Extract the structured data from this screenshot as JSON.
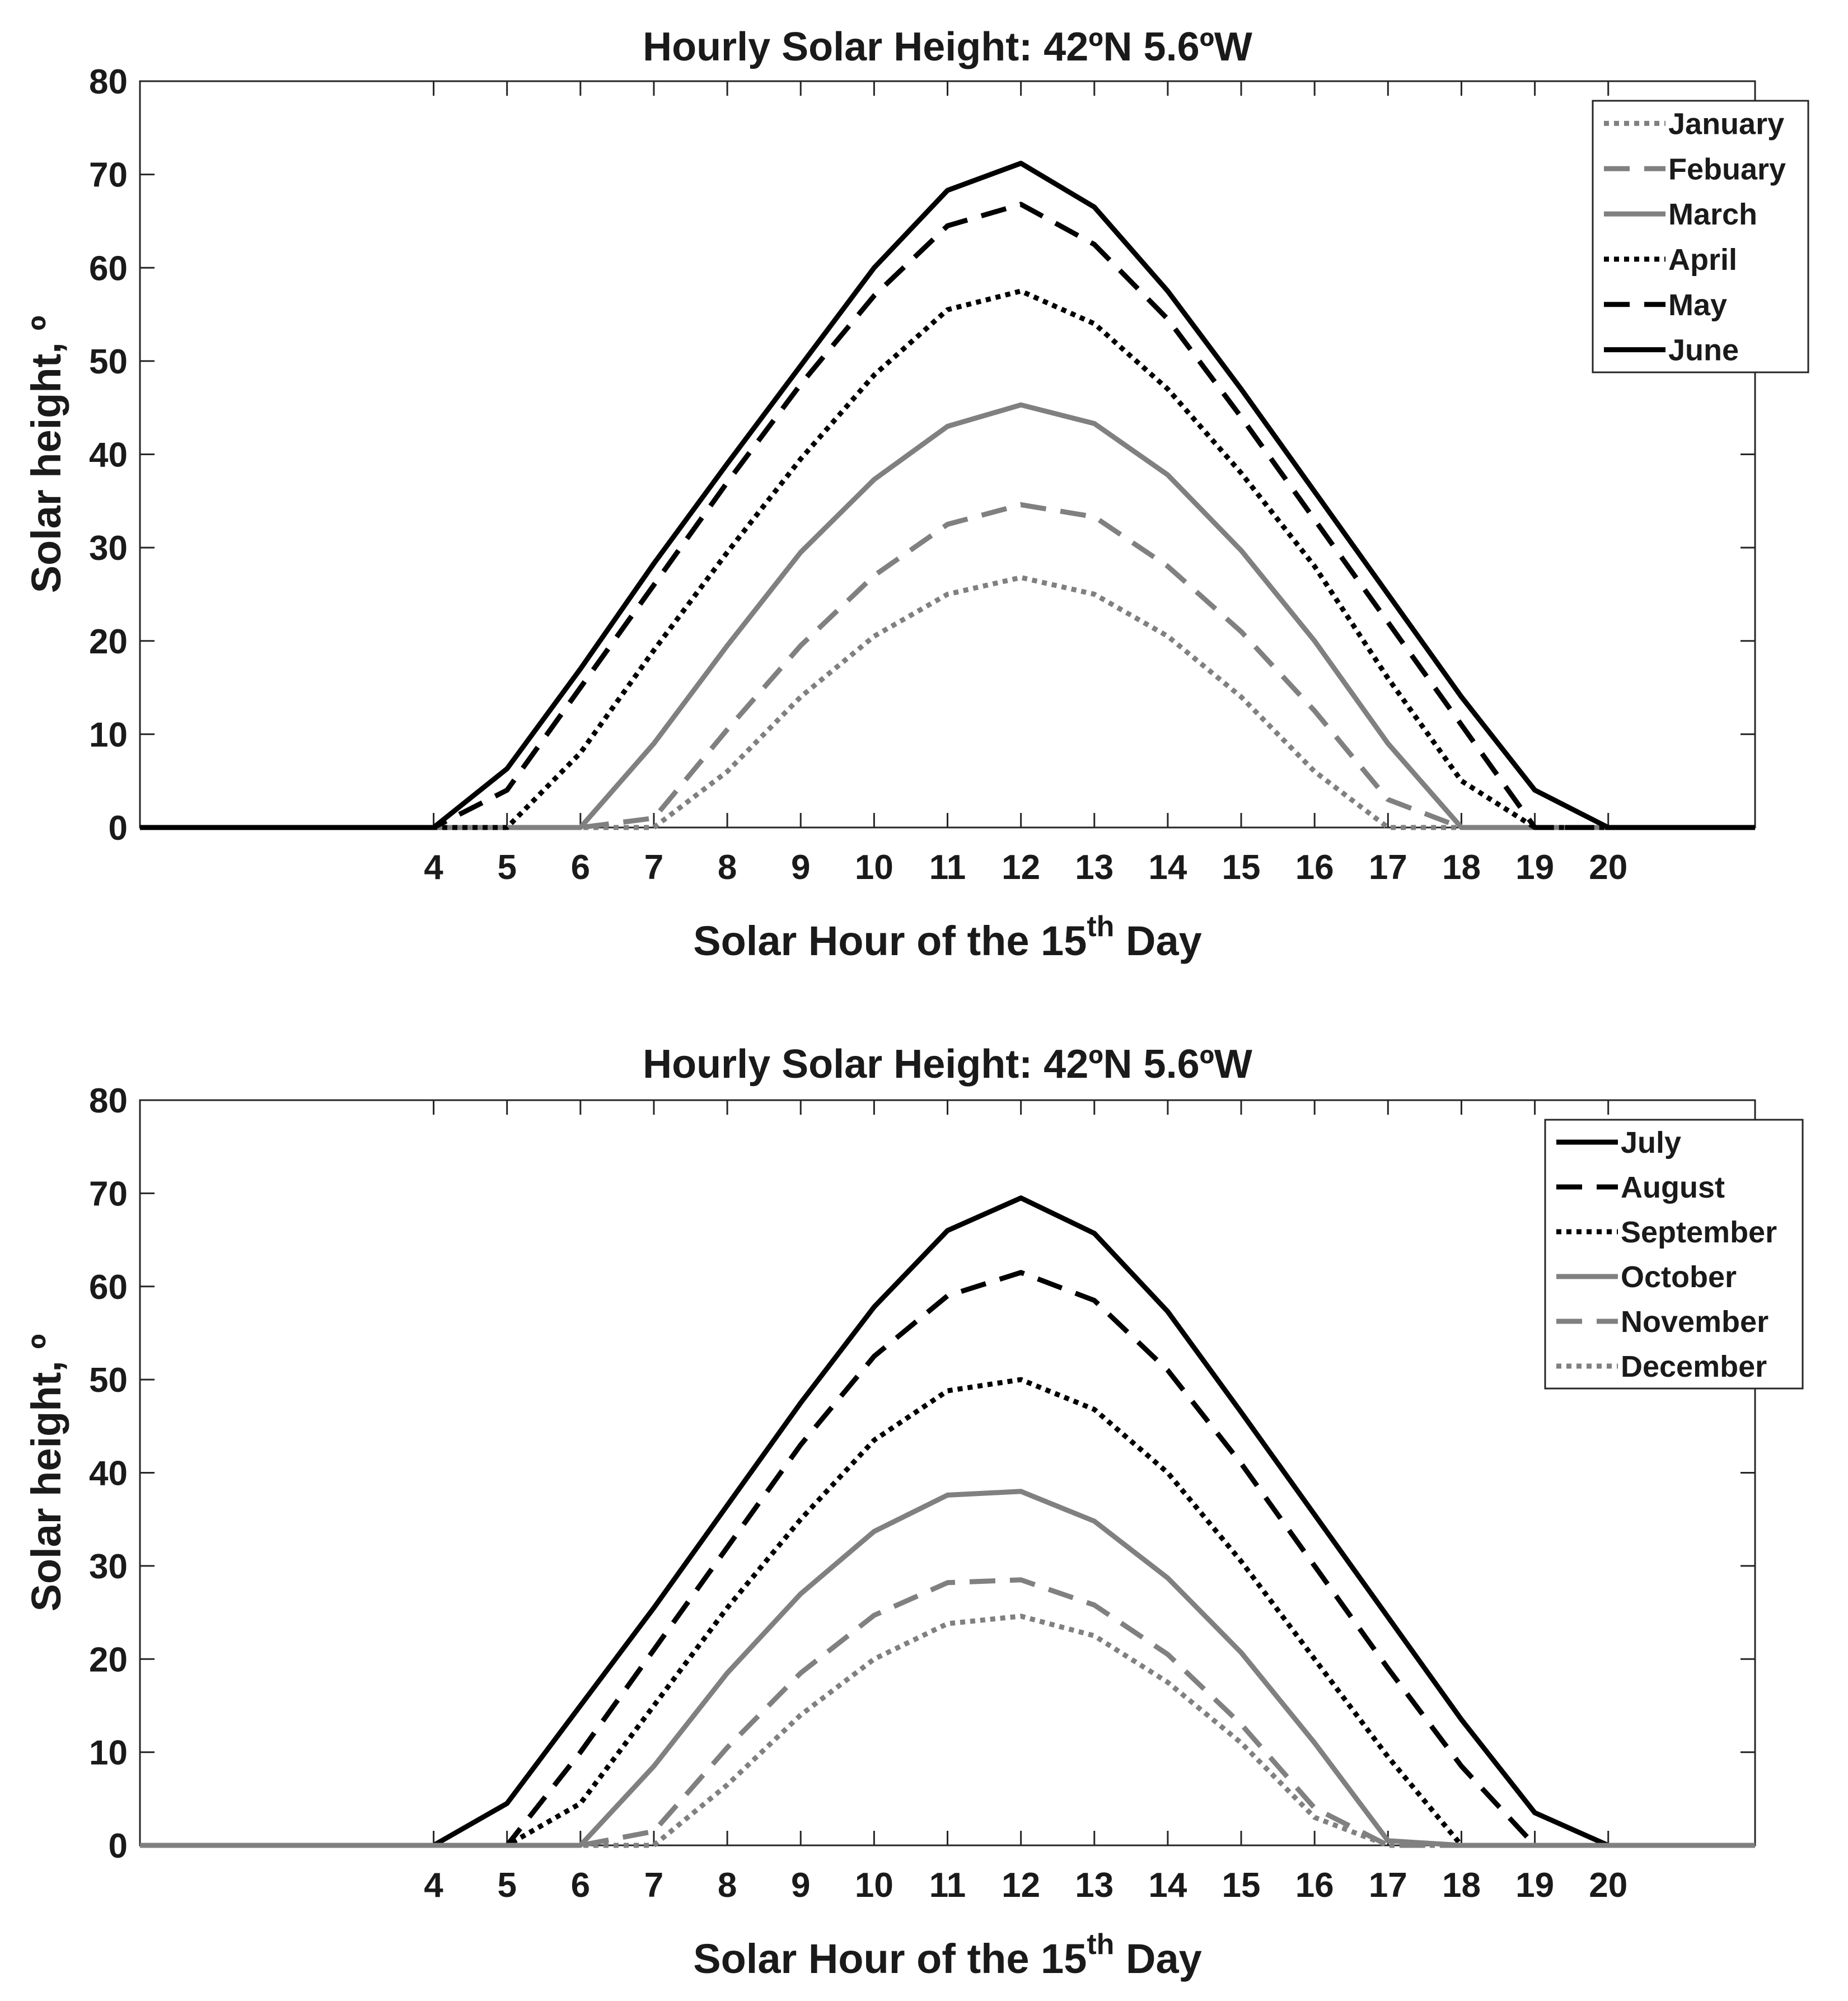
{
  "chart_data": [
    {
      "type": "line",
      "title": "Hourly Solar Height: 42ºN 5.6ºW",
      "xlabel_main": "Solar Hour of the 15",
      "xlabel_sup": "th",
      "xlabel_tail": " Day",
      "ylabel": "Solar height, º",
      "xlim": [
        0,
        22
      ],
      "ylim": [
        0,
        80
      ],
      "xticks": [
        4,
        5,
        6,
        7,
        8,
        9,
        10,
        11,
        12,
        13,
        14,
        15,
        16,
        17,
        18,
        19,
        20
      ],
      "yticks": [
        0,
        10,
        20,
        30,
        40,
        50,
        60,
        70,
        80
      ],
      "legend_position": "top-right",
      "x": [
        0,
        1,
        2,
        3,
        4,
        5,
        6,
        7,
        8,
        9,
        10,
        11,
        12,
        13,
        14,
        15,
        16,
        17,
        18,
        19,
        20,
        21,
        22
      ],
      "series": [
        {
          "name": "January",
          "color": "#808080",
          "style": "dotted",
          "values": [
            0,
            0,
            0,
            0,
            0,
            0,
            0,
            0,
            6,
            14,
            20.5,
            25,
            26.8,
            25,
            20.5,
            14,
            6,
            0,
            0,
            0,
            0,
            0,
            0
          ]
        },
        {
          "name": "Febuary",
          "color": "#808080",
          "style": "dashed",
          "values": [
            0,
            0,
            0,
            0,
            0,
            0,
            0,
            1,
            10.5,
            19.5,
            27,
            32.5,
            34.6,
            33.3,
            28,
            21,
            12.5,
            3,
            0,
            0,
            0,
            0,
            0
          ]
        },
        {
          "name": "March",
          "color": "#808080",
          "style": "solid",
          "values": [
            0,
            0,
            0,
            0,
            0,
            0,
            0,
            9,
            19.5,
            29.5,
            37.3,
            43,
            45.3,
            43.3,
            37.8,
            29.7,
            20,
            9,
            0,
            0,
            0,
            0,
            0
          ]
        },
        {
          "name": "April",
          "color": "#000000",
          "style": "dotted",
          "values": [
            0,
            0,
            0,
            0,
            0,
            0,
            8,
            19,
            29.5,
            39.5,
            48.5,
            55.5,
            57.5,
            54,
            47,
            38,
            28,
            16,
            5,
            0,
            0,
            0,
            0
          ]
        },
        {
          "name": "May",
          "color": "#000000",
          "style": "dashed",
          "values": [
            0,
            0,
            0,
            0,
            0,
            4,
            15,
            26,
            37,
            47.5,
            57,
            64.5,
            66.8,
            62.5,
            54.5,
            44,
            33,
            22,
            11,
            0,
            0,
            0,
            0
          ]
        },
        {
          "name": "June",
          "color": "#000000",
          "style": "solid",
          "values": [
            0,
            0,
            0,
            0,
            0,
            6.3,
            17,
            28.3,
            39,
            49.5,
            60,
            68.3,
            71.2,
            66.5,
            57.5,
            47,
            36,
            25,
            14,
            4,
            0,
            0,
            0
          ]
        }
      ]
    },
    {
      "type": "line",
      "title": "Hourly Solar Height: 42ºN 5.6ºW",
      "xlabel_main": "Solar Hour of the 15",
      "xlabel_sup": "th",
      "xlabel_tail": " Day",
      "ylabel": "Solar height, º",
      "xlim": [
        0,
        22
      ],
      "ylim": [
        0,
        80
      ],
      "xticks": [
        4,
        5,
        6,
        7,
        8,
        9,
        10,
        11,
        12,
        13,
        14,
        15,
        16,
        17,
        18,
        19,
        20
      ],
      "yticks": [
        0,
        10,
        20,
        30,
        40,
        50,
        60,
        70,
        80
      ],
      "legend_position": "top-right",
      "x": [
        0,
        1,
        2,
        3,
        4,
        5,
        6,
        7,
        8,
        9,
        10,
        11,
        12,
        13,
        14,
        15,
        16,
        17,
        18,
        19,
        20,
        21,
        22
      ],
      "series": [
        {
          "name": "July",
          "color": "#000000",
          "style": "solid",
          "values": [
            0,
            0,
            0,
            0,
            0,
            4.5,
            15,
            25.5,
            36.5,
            47.5,
            57.8,
            66,
            69.5,
            65.7,
            57.3,
            46.5,
            35.5,
            24.5,
            13.5,
            3.5,
            0,
            0,
            0
          ]
        },
        {
          "name": "August",
          "color": "#000000",
          "style": "dashed",
          "values": [
            0,
            0,
            0,
            0,
            0,
            0,
            10,
            21,
            32,
            43,
            52.5,
            59,
            61.5,
            58.5,
            51,
            41,
            30,
            19,
            8.5,
            0,
            0,
            0,
            0
          ]
        },
        {
          "name": "September",
          "color": "#000000",
          "style": "dotted",
          "values": [
            0,
            0,
            0,
            0,
            0,
            0,
            4.5,
            15,
            25.5,
            35,
            43.5,
            48.8,
            50,
            46.8,
            40,
            30.5,
            20,
            9.5,
            0,
            0,
            0,
            0,
            0
          ]
        },
        {
          "name": "October",
          "color": "#808080",
          "style": "solid",
          "values": [
            0,
            0,
            0,
            0,
            0,
            0,
            0,
            8.5,
            18.5,
            27,
            33.7,
            37.6,
            38,
            34.8,
            28.7,
            20.7,
            11,
            0.5,
            0,
            0,
            0,
            0,
            0
          ]
        },
        {
          "name": "November",
          "color": "#808080",
          "style": "dashed",
          "values": [
            0,
            0,
            0,
            0,
            0,
            0,
            0,
            1.5,
            10.5,
            18.5,
            24.7,
            28.2,
            28.5,
            25.8,
            20.5,
            13,
            4,
            0,
            0,
            0,
            0,
            0,
            0
          ]
        },
        {
          "name": "December",
          "color": "#808080",
          "style": "dotted",
          "values": [
            0,
            0,
            0,
            0,
            0,
            0,
            0,
            0,
            6.5,
            14,
            20,
            23.8,
            24.6,
            22.5,
            17.5,
            11,
            3,
            0,
            0,
            0,
            0,
            0,
            0
          ]
        }
      ]
    }
  ]
}
